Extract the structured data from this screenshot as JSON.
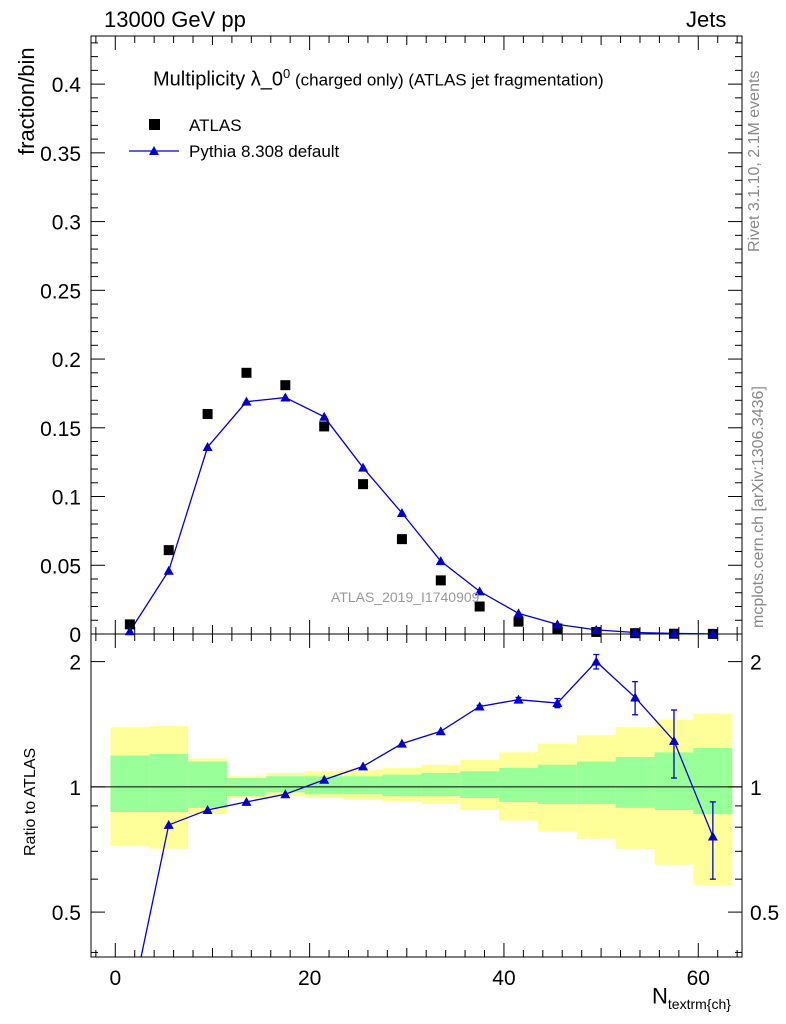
{
  "header": {
    "left": "13000 GeV pp",
    "right": "Jets"
  },
  "side_labels": {
    "rivet": "Rivet 3.1.10,  2.1M events",
    "mcplots": "mcplots.cern.ch [arXiv:1306.3436]"
  },
  "chart_data": [
    {
      "type": "scatter",
      "title_main": "Multiplicity λ_0",
      "title_sup": "0",
      "title_rest": " (charged only) (ATLAS jet fragmentation)",
      "ylabel": "fraction/bin",
      "watermark": "ATLAS_2019_I1740909",
      "ylim": [
        0,
        0.435
      ],
      "xlim": [
        -2.5,
        64.5
      ],
      "yticks": [
        0.05,
        0.1,
        0.15,
        0.2,
        0.25,
        0.3,
        0.35,
        0.4
      ],
      "ytick_labels": [
        "0.05",
        "0.1",
        "0.15",
        "0.2",
        "0.25",
        "0.3",
        "0.35",
        "0.4"
      ],
      "y_zero_label": "0",
      "legend_position": "top-left",
      "series": [
        {
          "name": "ATLAS",
          "marker": "square",
          "color": "#000000",
          "x": [
            1.5,
            5.5,
            9.5,
            13.5,
            17.5,
            21.5,
            25.5,
            29.5,
            33.5,
            37.5,
            41.5,
            45.5,
            49.5,
            53.5,
            57.5,
            61.5
          ],
          "values": [
            0.007,
            0.061,
            0.16,
            0.19,
            0.181,
            0.151,
            0.109,
            0.069,
            0.039,
            0.02,
            0.009,
            0.004,
            0.0015,
            0.0006,
            0.0002,
            0.0001
          ]
        },
        {
          "name": "Pythia 8.308 default",
          "marker": "triangle",
          "color": "#0000cc",
          "x": [
            1.5,
            5.5,
            9.5,
            13.5,
            17.5,
            21.5,
            25.5,
            29.5,
            33.5,
            37.5,
            41.5,
            45.5,
            49.5,
            53.5,
            57.5,
            61.5
          ],
          "values": [
            0.002,
            0.046,
            0.136,
            0.169,
            0.172,
            0.158,
            0.121,
            0.088,
            0.053,
            0.031,
            0.015,
            0.007,
            0.003,
            0.0011,
            0.0004,
            0.0001
          ]
        }
      ]
    },
    {
      "type": "line",
      "ylabel": "Ratio to ATLAS",
      "xlabel_main": "N",
      "xlabel_sub": "textrm{ch}",
      "ylim": [
        0.39,
        2.33
      ],
      "xlim": [
        -2.5,
        64.5
      ],
      "xticks": [
        0,
        20,
        40,
        60
      ],
      "xtick_labels": [
        "0",
        "20",
        "40",
        "60"
      ],
      "yticks": [
        0.5,
        1,
        2
      ],
      "ytick_labels": [
        "0.5",
        "1",
        "2"
      ],
      "bin_edges": [
        -0.5,
        3.5,
        7.5,
        11.5,
        15.5,
        19.5,
        23.5,
        27.5,
        31.5,
        35.5,
        39.5,
        43.5,
        47.5,
        51.5,
        55.5,
        59.5,
        63.5
      ],
      "band_green": {
        "color": "#99ff99",
        "lo": [
          0.87,
          0.87,
          0.89,
          0.95,
          0.97,
          0.96,
          0.96,
          0.95,
          0.95,
          0.94,
          0.92,
          0.91,
          0.91,
          0.89,
          0.88,
          0.86
        ],
        "hi": [
          1.19,
          1.2,
          1.15,
          1.05,
          1.06,
          1.06,
          1.06,
          1.07,
          1.08,
          1.09,
          1.11,
          1.13,
          1.15,
          1.18,
          1.21,
          1.24
        ]
      },
      "band_yellow": {
        "color": "#ffff99",
        "lo": [
          0.72,
          0.71,
          0.86,
          0.94,
          0.95,
          0.94,
          0.93,
          0.92,
          0.91,
          0.88,
          0.83,
          0.78,
          0.75,
          0.71,
          0.65,
          0.58
        ],
        "hi": [
          1.39,
          1.4,
          1.17,
          1.06,
          1.08,
          1.09,
          1.1,
          1.11,
          1.13,
          1.16,
          1.21,
          1.27,
          1.33,
          1.39,
          1.45,
          1.5
        ]
      },
      "series": [
        {
          "name": "Pythia 8.308 default",
          "color": "#0000cc",
          "x": [
            1.5,
            5.5,
            9.5,
            13.5,
            17.5,
            21.5,
            25.5,
            29.5,
            33.5,
            37.5,
            41.5,
            45.5,
            49.5,
            53.5,
            57.5,
            61.5
          ],
          "values": [
            0.29,
            0.81,
            0.88,
            0.92,
            0.96,
            1.04,
            1.12,
            1.27,
            1.36,
            1.56,
            1.62,
            1.59,
            2.0,
            1.64,
            1.29,
            0.76
          ],
          "err": [
            0,
            0,
            0,
            0,
            0,
            0,
            0,
            0,
            0,
            0.01,
            0.02,
            0.04,
            0.08,
            0.15,
            0.24,
            0.16
          ]
        }
      ]
    }
  ]
}
